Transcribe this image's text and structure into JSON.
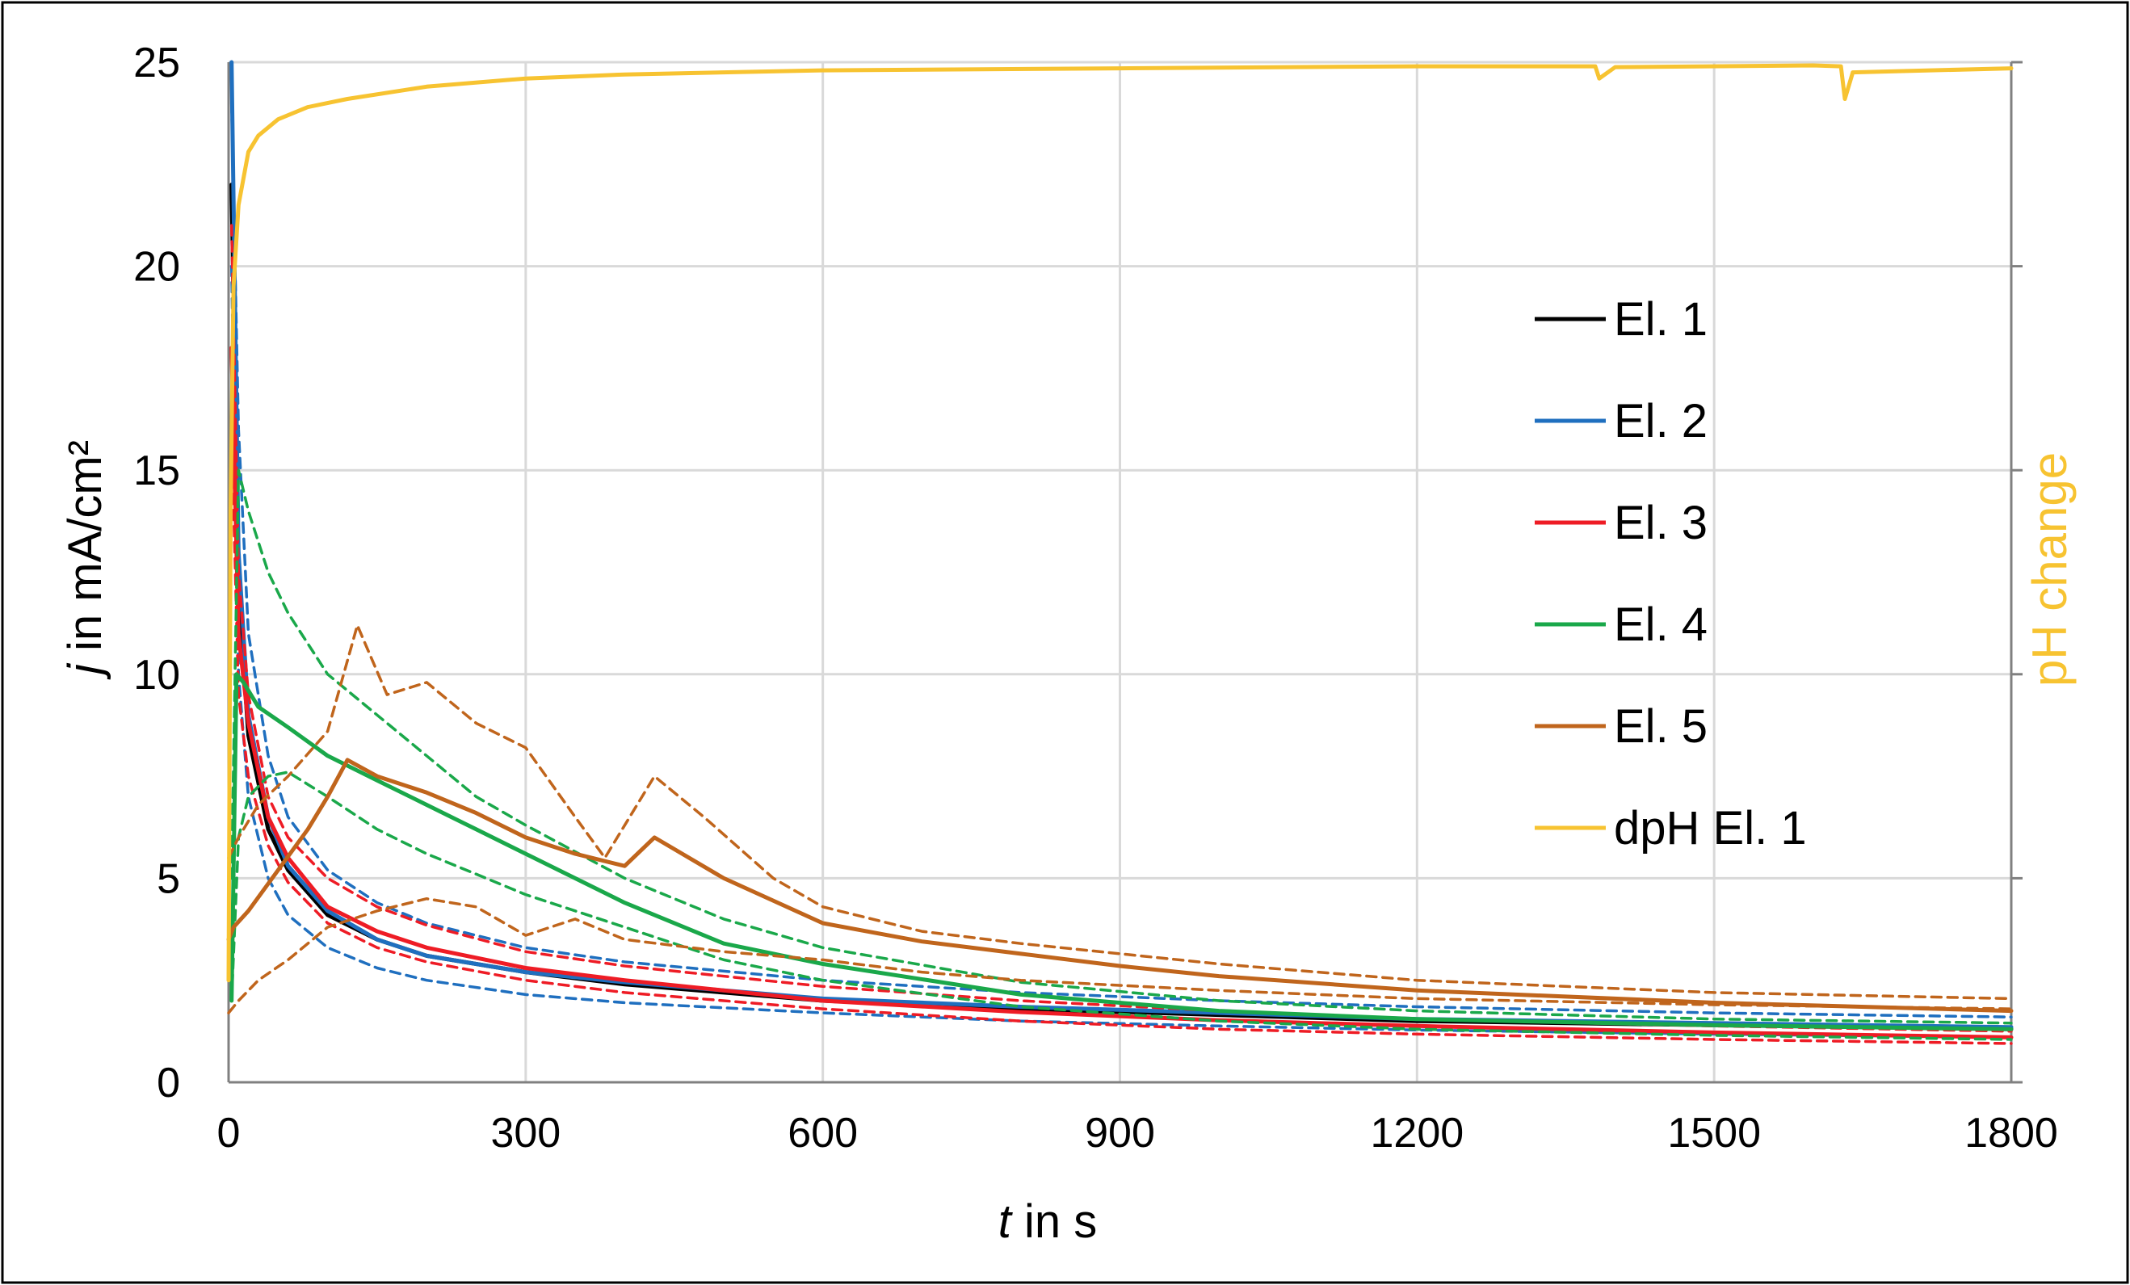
{
  "chart_data": {
    "type": "line",
    "title": "",
    "xlabel_italic": "t",
    "xlabel_rest": " in s",
    "ylabel_italic": "j",
    "ylabel_rest": " in mA/cm²",
    "y2label": "pH change",
    "xlim": [
      0,
      1800
    ],
    "ylim": [
      0,
      25
    ],
    "x_ticks": [
      "0",
      "300",
      "600",
      "900",
      "1200",
      "1500",
      "1800"
    ],
    "y_ticks": [
      "0",
      "5",
      "10",
      "15",
      "20",
      "25"
    ],
    "y2_ticks": 5,
    "grid": true,
    "legend_position": "right-center",
    "colors": {
      "el1": "#000000",
      "el2": "#1f6fbf",
      "el3": "#ee1c25",
      "el4": "#1aa84a",
      "el5": "#c0651c",
      "dph": "#f7c331",
      "grid": "#d9d9d9",
      "axis": "#808080",
      "y2label": "#f7c331"
    },
    "legend": [
      "El. 1",
      "El. 2",
      "El. 3",
      "El. 4",
      "El. 5",
      "dpH El. 1"
    ],
    "series": [
      {
        "name": "El. 1",
        "key": "el1",
        "style": "solid",
        "x": [
          3,
          10,
          20,
          40,
          60,
          100,
          150,
          200,
          300,
          400,
          500,
          600,
          800,
          1000,
          1200,
          1500,
          1800
        ],
        "y": [
          22,
          12,
          8.5,
          6.2,
          5.2,
          4.1,
          3.5,
          3.1,
          2.7,
          2.4,
          2.2,
          2.0,
          1.8,
          1.65,
          1.5,
          1.4,
          1.3
        ]
      },
      {
        "name": "El. 2",
        "key": "el2",
        "style": "solid",
        "x": [
          3,
          10,
          20,
          40,
          60,
          100,
          150,
          200,
          300,
          400,
          500,
          600,
          800,
          1000,
          1200,
          1500,
          1800
        ],
        "y": [
          25,
          13,
          9,
          6.5,
          5.3,
          4.2,
          3.5,
          3.1,
          2.7,
          2.45,
          2.25,
          2.05,
          1.85,
          1.7,
          1.55,
          1.45,
          1.35
        ]
      },
      {
        "name": "El. 2 (upper)",
        "key": "el2",
        "style": "dashed",
        "x": [
          3,
          10,
          20,
          40,
          60,
          100,
          150,
          200,
          300,
          400,
          600,
          800,
          1000,
          1200,
          1500,
          1800
        ],
        "y": [
          24,
          16,
          11,
          8,
          6.5,
          5.2,
          4.4,
          3.9,
          3.3,
          2.95,
          2.5,
          2.2,
          2.0,
          1.85,
          1.7,
          1.6
        ]
      },
      {
        "name": "El. 2 (lower)",
        "key": "el2",
        "style": "dashed",
        "x": [
          3,
          10,
          20,
          40,
          60,
          100,
          150,
          200,
          300,
          400,
          600,
          800,
          1000,
          1200,
          1500,
          1800
        ],
        "y": [
          20,
          10,
          7,
          5,
          4.1,
          3.3,
          2.8,
          2.5,
          2.15,
          1.95,
          1.7,
          1.5,
          1.38,
          1.28,
          1.18,
          1.1
        ]
      },
      {
        "name": "El. 3",
        "key": "el3",
        "style": "solid",
        "x": [
          3,
          10,
          20,
          40,
          60,
          100,
          150,
          200,
          300,
          400,
          500,
          600,
          800,
          1000,
          1200,
          1500,
          1800
        ],
        "y": [
          18,
          11,
          8.8,
          6.5,
          5.5,
          4.3,
          3.7,
          3.3,
          2.8,
          2.5,
          2.25,
          2.0,
          1.72,
          1.52,
          1.38,
          1.22,
          1.1
        ]
      },
      {
        "name": "El. 3 (upper)",
        "key": "el3",
        "style": "dashed",
        "x": [
          3,
          10,
          20,
          40,
          60,
          100,
          150,
          200,
          300,
          400,
          600,
          800,
          1000,
          1200,
          1500,
          1800
        ],
        "y": [
          21,
          12.5,
          9.5,
          7,
          6,
          5.0,
          4.3,
          3.85,
          3.2,
          2.85,
          2.35,
          2.0,
          1.75,
          1.55,
          1.38,
          1.25
        ]
      },
      {
        "name": "El. 3 (lower)",
        "key": "el3",
        "style": "dashed",
        "x": [
          3,
          10,
          20,
          40,
          60,
          100,
          150,
          200,
          300,
          400,
          600,
          800,
          1000,
          1200,
          1500,
          1800
        ],
        "y": [
          16,
          9.5,
          7.5,
          5.8,
          4.9,
          3.9,
          3.3,
          2.95,
          2.5,
          2.2,
          1.8,
          1.5,
          1.3,
          1.18,
          1.05,
          0.95
        ]
      },
      {
        "name": "El. 4",
        "key": "el4",
        "style": "solid",
        "x": [
          3,
          8,
          15,
          30,
          60,
          100,
          150,
          200,
          250,
          300,
          400,
          500,
          600,
          800,
          1000,
          1200,
          1500,
          1800
        ],
        "y": [
          2,
          10,
          9.8,
          9.2,
          8.7,
          8.0,
          7.4,
          6.8,
          6.2,
          5.6,
          4.4,
          3.4,
          2.9,
          2.15,
          1.75,
          1.55,
          1.4,
          1.3
        ]
      },
      {
        "name": "El. 4 (upper)",
        "key": "el4",
        "style": "dashed",
        "x": [
          3,
          10,
          20,
          40,
          60,
          100,
          150,
          200,
          250,
          300,
          400,
          500,
          600,
          800,
          1000,
          1200,
          1500,
          1800
        ],
        "y": [
          5,
          15,
          14,
          12.5,
          11.5,
          10,
          9,
          8,
          7,
          6.3,
          5.0,
          4.0,
          3.3,
          2.45,
          2.0,
          1.75,
          1.55,
          1.45
        ]
      },
      {
        "name": "El. 4 (lower)",
        "key": "el4",
        "style": "dashed",
        "x": [
          3,
          10,
          20,
          40,
          60,
          100,
          150,
          200,
          250,
          300,
          400,
          500,
          600,
          800,
          1000,
          1200,
          1500,
          1800
        ],
        "y": [
          2,
          6,
          7,
          7.5,
          7.6,
          7.0,
          6.2,
          5.6,
          5.1,
          4.6,
          3.8,
          3.0,
          2.5,
          1.85,
          1.5,
          1.3,
          1.15,
          1.05
        ]
      },
      {
        "name": "El. 5",
        "key": "el5",
        "style": "solid",
        "x": [
          0,
          5,
          20,
          50,
          80,
          100,
          120,
          150,
          200,
          250,
          300,
          350,
          400,
          430,
          500,
          600,
          700,
          800,
          900,
          1000,
          1200,
          1500,
          1800
        ],
        "y": [
          3.5,
          3.8,
          4.2,
          5.2,
          6.2,
          7.0,
          7.9,
          7.5,
          7.1,
          6.6,
          6.0,
          5.6,
          5.3,
          6.0,
          5.0,
          3.9,
          3.45,
          3.15,
          2.85,
          2.6,
          2.25,
          1.95,
          1.75
        ]
      },
      {
        "name": "El. 5 (upper)",
        "key": "el5",
        "style": "dashed",
        "x": [
          0,
          10,
          30,
          60,
          100,
          130,
          160,
          200,
          250,
          300,
          350,
          380,
          430,
          480,
          550,
          600,
          700,
          800,
          1000,
          1200,
          1500,
          1800
        ],
        "y": [
          5.5,
          6.0,
          6.8,
          7.5,
          8.6,
          11.2,
          9.5,
          9.8,
          8.8,
          8.2,
          6.5,
          5.5,
          7.5,
          6.5,
          5.0,
          4.3,
          3.7,
          3.4,
          2.9,
          2.5,
          2.2,
          2.05
        ]
      },
      {
        "name": "El. 5 (lower)",
        "key": "el5",
        "style": "dashed",
        "x": [
          0,
          10,
          30,
          60,
          100,
          150,
          200,
          250,
          300,
          350,
          400,
          500,
          600,
          700,
          800,
          1000,
          1200,
          1500,
          1800
        ],
        "y": [
          1.7,
          2.0,
          2.5,
          3.0,
          3.8,
          4.2,
          4.5,
          4.3,
          3.6,
          4.0,
          3.5,
          3.2,
          3.0,
          2.7,
          2.5,
          2.25,
          2.05,
          1.9,
          1.8
        ]
      },
      {
        "name": "dpH El. 1",
        "key": "dph",
        "style": "solid",
        "x": [
          0,
          2,
          5,
          10,
          20,
          30,
          50,
          80,
          120,
          200,
          300,
          400,
          600,
          900,
          1200,
          1380,
          1384,
          1400,
          1600,
          1628,
          1632,
          1640,
          1800
        ],
        "y": [
          2.5,
          14,
          19.5,
          21.5,
          22.8,
          23.2,
          23.6,
          23.9,
          24.1,
          24.4,
          24.6,
          24.7,
          24.8,
          24.85,
          24.9,
          24.9,
          24.6,
          24.88,
          24.92,
          24.9,
          24.1,
          24.75,
          24.85
        ]
      }
    ]
  }
}
